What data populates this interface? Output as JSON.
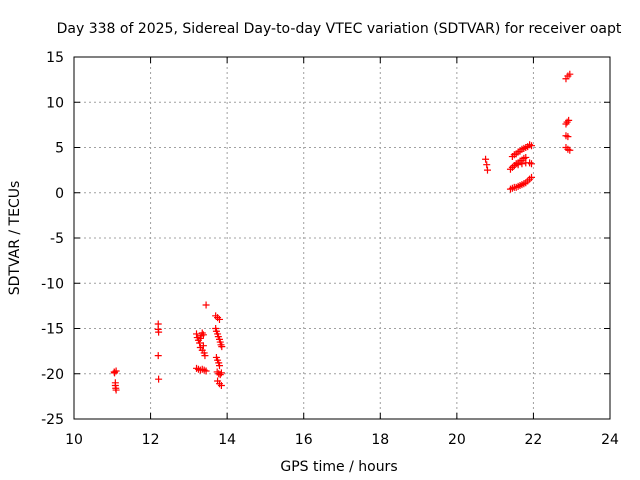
{
  "chart_data": {
    "type": "scatter",
    "title": "Day 338 of 2025, Sidereal Day-to-day VTEC variation (SDTVAR) for receiver oapt",
    "xlabel": "GPS time / hours",
    "ylabel": "SDTVAR / TECUs",
    "xlim": [
      10,
      24
    ],
    "ylim": [
      -25,
      15
    ],
    "x_ticks": [
      10,
      12,
      14,
      16,
      18,
      20,
      22,
      24
    ],
    "y_ticks": [
      15,
      10,
      5,
      0,
      -5,
      -10,
      -15,
      -20,
      -25
    ],
    "grid": true,
    "marker": "plus",
    "color": "#ff0000",
    "series": [
      {
        "name": "SDTVAR",
        "points": [
          [
            11.05,
            -19.8
          ],
          [
            11.06,
            -19.9
          ],
          [
            11.08,
            -21.0
          ],
          [
            11.08,
            -21.3
          ],
          [
            11.09,
            -21.6
          ],
          [
            11.1,
            -21.8
          ],
          [
            11.1,
            -19.7
          ],
          [
            12.2,
            -14.5
          ],
          [
            12.2,
            -15.1
          ],
          [
            12.21,
            -15.4
          ],
          [
            12.2,
            -18.0
          ],
          [
            12.21,
            -20.6
          ],
          [
            13.2,
            -15.6
          ],
          [
            13.22,
            -16.0
          ],
          [
            13.25,
            -16.3
          ],
          [
            13.28,
            -16.6
          ],
          [
            13.3,
            -16.1
          ],
          [
            13.32,
            -15.8
          ],
          [
            13.35,
            -15.5
          ],
          [
            13.38,
            -15.7
          ],
          [
            13.2,
            -19.4
          ],
          [
            13.25,
            -19.5
          ],
          [
            13.3,
            -19.6
          ],
          [
            13.35,
            -19.5
          ],
          [
            13.4,
            -19.6
          ],
          [
            13.45,
            -19.7
          ],
          [
            13.3,
            -17.1
          ],
          [
            13.35,
            -17.4
          ],
          [
            13.4,
            -17.7
          ],
          [
            13.42,
            -18.0
          ],
          [
            13.38,
            -16.9
          ],
          [
            13.45,
            -12.4
          ],
          [
            13.7,
            -13.6
          ],
          [
            13.75,
            -13.8
          ],
          [
            13.8,
            -14.0
          ],
          [
            13.7,
            -15.0
          ],
          [
            13.72,
            -15.3
          ],
          [
            13.75,
            -15.6
          ],
          [
            13.77,
            -15.9
          ],
          [
            13.8,
            -16.2
          ],
          [
            13.82,
            -16.5
          ],
          [
            13.84,
            -16.8
          ],
          [
            13.86,
            -17.0
          ],
          [
            13.72,
            -18.2
          ],
          [
            13.75,
            -18.5
          ],
          [
            13.78,
            -18.8
          ],
          [
            13.8,
            -19.1
          ],
          [
            13.74,
            -19.8
          ],
          [
            13.78,
            -20.0
          ],
          [
            13.82,
            -20.1
          ],
          [
            13.85,
            -19.9
          ],
          [
            13.75,
            -20.8
          ],
          [
            13.8,
            -21.1
          ],
          [
            13.85,
            -21.3
          ],
          [
            20.75,
            3.7
          ],
          [
            20.78,
            3.1
          ],
          [
            20.8,
            2.5
          ],
          [
            21.45,
            4.0
          ],
          [
            21.5,
            4.2
          ],
          [
            21.55,
            4.3
          ],
          [
            21.6,
            4.5
          ],
          [
            21.65,
            4.6
          ],
          [
            21.7,
            4.8
          ],
          [
            21.75,
            4.9
          ],
          [
            21.8,
            5.0
          ],
          [
            21.85,
            5.1
          ],
          [
            21.9,
            5.3
          ],
          [
            21.95,
            5.2
          ],
          [
            21.4,
            2.6
          ],
          [
            21.45,
            2.8
          ],
          [
            21.5,
            3.0
          ],
          [
            21.55,
            3.2
          ],
          [
            21.6,
            3.3
          ],
          [
            21.65,
            3.5
          ],
          [
            21.7,
            3.6
          ],
          [
            21.75,
            3.8
          ],
          [
            21.8,
            3.9
          ],
          [
            21.5,
            3.0
          ],
          [
            21.6,
            3.1
          ],
          [
            21.7,
            3.2
          ],
          [
            21.8,
            3.3
          ],
          [
            21.9,
            3.3
          ],
          [
            21.95,
            3.2
          ],
          [
            21.4,
            0.4
          ],
          [
            21.45,
            0.5
          ],
          [
            21.5,
            0.6
          ],
          [
            21.55,
            0.6
          ],
          [
            21.6,
            0.7
          ],
          [
            21.65,
            0.8
          ],
          [
            21.7,
            0.9
          ],
          [
            21.75,
            1.0
          ],
          [
            21.8,
            1.1
          ],
          [
            21.85,
            1.3
          ],
          [
            21.9,
            1.5
          ],
          [
            21.95,
            1.7
          ],
          [
            22.85,
            12.6
          ],
          [
            22.9,
            12.9
          ],
          [
            22.95,
            13.1
          ],
          [
            22.85,
            7.6
          ],
          [
            22.88,
            7.8
          ],
          [
            22.92,
            8.0
          ],
          [
            22.85,
            6.3
          ],
          [
            22.9,
            6.2
          ],
          [
            22.85,
            5.0
          ],
          [
            22.9,
            4.8
          ],
          [
            22.95,
            4.7
          ]
        ]
      }
    ]
  }
}
